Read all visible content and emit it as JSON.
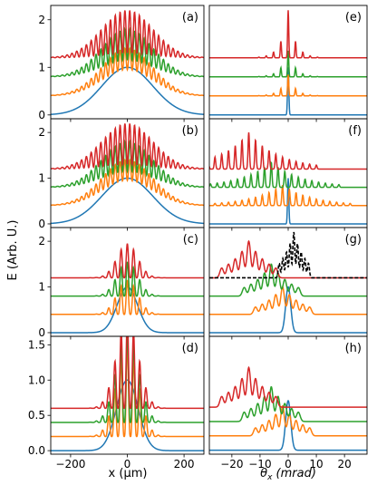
{
  "figure": {
    "ylabel": "E (Arb. U.)",
    "xlabel_left": "x (μm)",
    "xlabel_right_symbol": "θ",
    "xlabel_right_sub": "x",
    "xlabel_right_unit": "(mrad)"
  },
  "colors": {
    "blue": "#1f77b4",
    "orange": "#ff7f0e",
    "green": "#2ca02c",
    "red": "#d62728",
    "black_dashed": "#000000"
  },
  "chart_data": [
    {
      "panel_label": "(a)",
      "type": "line",
      "column": "left",
      "x_ticks": [
        -200,
        0,
        200
      ],
      "xlim": [
        -270,
        270
      ],
      "y_ticks": [
        0,
        1,
        2
      ],
      "ylim": [
        -0.08,
        2.3
      ],
      "series_offsets": [
        0,
        0.4,
        0.8,
        1.2
      ],
      "profile": "gaussian-fringes"
    },
    {
      "panel_label": "(e)",
      "type": "line",
      "column": "right",
      "x_ticks": [
        -20,
        -10,
        0,
        10,
        20
      ],
      "xlim": [
        -28,
        28
      ],
      "series_offsets": [
        0,
        0.4,
        0.8,
        1.2
      ],
      "profile": "sharp-peaks-symmetric"
    },
    {
      "panel_label": "(b)",
      "type": "line",
      "column": "left",
      "x_ticks": [
        -200,
        0,
        200
      ],
      "xlim": [
        -270,
        270
      ],
      "y_ticks": [
        0,
        1,
        2
      ],
      "ylim": [
        -0.08,
        2.3
      ],
      "series_offsets": [
        0,
        0.4,
        0.8,
        1.2
      ],
      "profile": "gaussian-fringes"
    },
    {
      "panel_label": "(f)",
      "type": "line",
      "column": "right",
      "x_ticks": [
        -20,
        -10,
        0,
        10,
        20
      ],
      "xlim": [
        -28,
        28
      ],
      "series_offsets": [
        0,
        0.4,
        0.8,
        1.2
      ],
      "profile": "sharp-peaks-shifted"
    },
    {
      "panel_label": "(c)",
      "type": "line",
      "column": "left",
      "x_ticks": [
        -200,
        0,
        200
      ],
      "xlim": [
        -270,
        270
      ],
      "y_ticks": [
        0,
        1,
        2
      ],
      "ylim": [
        -0.08,
        2.3
      ],
      "series_offsets": [
        0,
        0.4,
        0.8,
        1.2
      ],
      "profile": "narrow-fringes"
    },
    {
      "panel_label": "(g)",
      "type": "line",
      "column": "right",
      "x_ticks": [
        -20,
        -10,
        0,
        10,
        20
      ],
      "xlim": [
        -28,
        28
      ],
      "series_offsets": [
        0,
        0.4,
        0.8,
        1.2
      ],
      "profile": "broad-shifted-peaks",
      "has_dashed_black": true
    },
    {
      "panel_label": "(d)",
      "type": "line",
      "column": "left",
      "x_ticks": [
        -200,
        0,
        200
      ],
      "xlim": [
        -270,
        270
      ],
      "y_ticks": [
        0.0,
        0.5,
        1.0,
        1.5
      ],
      "y_tick_labels": [
        "0.0",
        "0.5",
        "1.0",
        "1.5"
      ],
      "ylim": [
        -0.05,
        1.62
      ],
      "series_offsets": [
        0,
        0.2,
        0.4,
        0.6
      ],
      "profile": "narrow-fringes-tall"
    },
    {
      "panel_label": "(h)",
      "type": "line",
      "column": "right",
      "x_ticks": [
        -20,
        -10,
        0,
        10,
        20
      ],
      "xlim": [
        -28,
        28
      ],
      "series_offsets": [
        0,
        0.29,
        0.58,
        0.87
      ],
      "profile": "broad-shifted-peaks-d"
    }
  ]
}
